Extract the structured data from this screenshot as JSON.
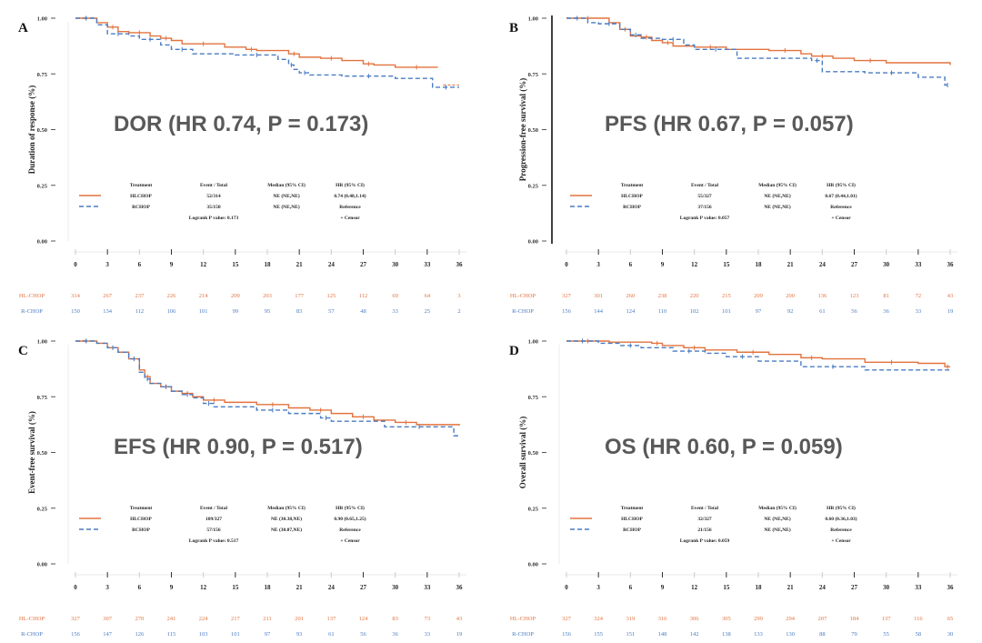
{
  "colors": {
    "hl": "#e2733f",
    "r": "#4a7cc2",
    "axis": "#222222",
    "title": "#595959",
    "text": "#222222"
  },
  "legend_headers": [
    "Treatment",
    "Event / Total",
    "Median (95% CI)",
    "HR (95% CI)"
  ],
  "censor_label": "+ Censor",
  "chart_data": [
    {
      "panel": "A",
      "type": "line",
      "title": "DOR (HR 0.74, P = 0.173)",
      "ylabel": "Duration of response (%)",
      "xlabel": "",
      "ylim": [
        0,
        1
      ],
      "xlim": [
        0,
        36
      ],
      "yticks": [
        "0.00",
        "0.25",
        "0.50",
        "0.75",
        "1.00"
      ],
      "xticks": [
        "0",
        "3",
        "6",
        "9",
        "12",
        "15",
        "18",
        "21",
        "24",
        "27",
        "30",
        "33",
        "36"
      ],
      "y_axis_line": false,
      "series": [
        {
          "name": "HL-CHOP",
          "style": "solid",
          "events_total": "52/314",
          "median": "NE (NE,NE)",
          "hr": "0.74 (0.48,1.14)",
          "x": [
            0,
            2,
            3,
            4,
            5,
            7,
            8,
            9,
            10,
            14,
            16,
            17,
            20,
            21,
            23,
            25,
            27,
            28,
            30,
            34
          ],
          "y": [
            1.0,
            0.98,
            0.96,
            0.94,
            0.935,
            0.92,
            0.91,
            0.9,
            0.885,
            0.87,
            0.86,
            0.855,
            0.84,
            0.825,
            0.82,
            0.81,
            0.795,
            0.79,
            0.78,
            0.78
          ],
          "tail": {
            "x": [
              34.5,
              36
            ],
            "y": [
              0.7,
              0.7
            ]
          }
        },
        {
          "name": "R-CHOP",
          "style": "dashed",
          "events_total": "35/150",
          "median": "NE (NE,NE)",
          "hr": "Reference",
          "x": [
            0,
            2,
            3,
            5,
            6,
            8,
            9,
            11,
            15,
            19,
            20,
            20.5,
            21,
            22,
            25,
            30,
            33.5,
            36
          ],
          "y": [
            1.0,
            0.97,
            0.93,
            0.92,
            0.905,
            0.88,
            0.86,
            0.84,
            0.835,
            0.815,
            0.79,
            0.77,
            0.755,
            0.745,
            0.74,
            0.73,
            0.69,
            0.69
          ]
        }
      ],
      "logrank": "Logrank P value: 0.173",
      "at_risk": {
        "HL-CHOP": [
          "314",
          "267",
          "237",
          "226",
          "214",
          "209",
          "203",
          "177",
          "125",
          "112",
          "69",
          "64",
          "3"
        ],
        "R-CHOP": [
          "150",
          "134",
          "112",
          "106",
          "101",
          "99",
          "95",
          "83",
          "57",
          "48",
          "33",
          "25",
          "2"
        ]
      }
    },
    {
      "panel": "B",
      "type": "line",
      "title": "PFS (HR 0.67, P = 0.057)",
      "ylabel": "Progression-free survival (%)",
      "xlabel": "",
      "ylim": [
        0,
        1
      ],
      "xlim": [
        0,
        36
      ],
      "yticks": [
        "0.00",
        "0.25",
        "0.50",
        "0.75",
        "1.00"
      ],
      "xticks": [
        "0",
        "3",
        "6",
        "9",
        "12",
        "15",
        "18",
        "21",
        "24",
        "27",
        "30",
        "33",
        "36"
      ],
      "y_axis_line": true,
      "series": [
        {
          "name": "HL-CHOP",
          "style": "solid",
          "events_total": "55/327",
          "median": "NE (NE,NE)",
          "hr": "0.67 (0.44,1.01)",
          "x": [
            0,
            4,
            5,
            6,
            7,
            8,
            9,
            10,
            12,
            15,
            19,
            22,
            23,
            25,
            27,
            30,
            36
          ],
          "y": [
            1.0,
            0.98,
            0.95,
            0.92,
            0.915,
            0.9,
            0.89,
            0.875,
            0.87,
            0.86,
            0.855,
            0.84,
            0.83,
            0.82,
            0.81,
            0.8,
            0.79
          ],
          "tail": null
        },
        {
          "name": "R-CHOP",
          "style": "dashed",
          "events_total": "37/156",
          "median": "NE (NE,NE)",
          "hr": "Reference",
          "x": [
            0,
            2,
            3,
            5,
            6,
            7,
            9,
            11,
            12,
            16,
            23,
            24,
            28,
            33,
            35.5,
            36
          ],
          "y": [
            1.0,
            0.98,
            0.975,
            0.95,
            0.925,
            0.91,
            0.905,
            0.88,
            0.86,
            0.82,
            0.81,
            0.76,
            0.755,
            0.735,
            0.7,
            0.7
          ]
        }
      ],
      "logrank": "Logrank P value: 0.057",
      "at_risk": {
        "HL-CHOP": [
          "327",
          "301",
          "260",
          "238",
          "220",
          "215",
          "209",
          "200",
          "136",
          "123",
          "81",
          "72",
          "43"
        ],
        "R-CHOP": [
          "156",
          "144",
          "124",
          "110",
          "102",
          "101",
          "97",
          "92",
          "61",
          "56",
          "36",
          "33",
          "19"
        ]
      }
    },
    {
      "panel": "C",
      "type": "line",
      "title": "EFS (HR 0.90, P = 0.517)",
      "ylabel": "Event-free survival (%)",
      "xlabel": "",
      "ylim": [
        0,
        1
      ],
      "xlim": [
        0,
        36
      ],
      "yticks": [
        "0.00",
        "0.25",
        "0.50",
        "0.75",
        "1.00"
      ],
      "xticks": [
        "0",
        "3",
        "6",
        "9",
        "12",
        "15",
        "18",
        "21",
        "24",
        "27",
        "30",
        "33",
        "36"
      ],
      "y_axis_line": false,
      "series": [
        {
          "name": "HL-CHOP",
          "style": "solid",
          "events_total": "109/327",
          "median": "NE (30.38,NE)",
          "hr": "0.90 (0.65,1.25)",
          "x": [
            0,
            2,
            3,
            4,
            5,
            6,
            6.5,
            7,
            8,
            9,
            10,
            11,
            12,
            14,
            17,
            20,
            22,
            24,
            26,
            28,
            30,
            32,
            36
          ],
          "y": [
            1.0,
            0.99,
            0.97,
            0.95,
            0.92,
            0.87,
            0.84,
            0.81,
            0.795,
            0.775,
            0.765,
            0.75,
            0.735,
            0.725,
            0.715,
            0.7,
            0.69,
            0.675,
            0.66,
            0.645,
            0.635,
            0.625,
            0.62
          ],
          "tail": null
        },
        {
          "name": "R-CHOP",
          "style": "dashed",
          "events_total": "57/156",
          "median": "NE (30.87,NE)",
          "hr": "Reference",
          "x": [
            0,
            2,
            3,
            4,
            5,
            6,
            6.5,
            7,
            8,
            9,
            10,
            11,
            12,
            13,
            17,
            20,
            23,
            24,
            29,
            35.5,
            36
          ],
          "y": [
            1.0,
            0.99,
            0.97,
            0.95,
            0.92,
            0.86,
            0.83,
            0.81,
            0.795,
            0.775,
            0.76,
            0.745,
            0.72,
            0.705,
            0.69,
            0.675,
            0.655,
            0.64,
            0.615,
            0.575,
            0.575
          ]
        }
      ],
      "logrank": "Logrank P value: 0.517",
      "at_risk": {
        "HL-CHOP": [
          "327",
          "307",
          "270",
          "241",
          "224",
          "217",
          "211",
          "201",
          "137",
          "124",
          "83",
          "73",
          "43"
        ],
        "R-CHOP": [
          "156",
          "147",
          "126",
          "115",
          "103",
          "101",
          "97",
          "93",
          "61",
          "56",
          "36",
          "33",
          "19"
        ]
      }
    },
    {
      "panel": "D",
      "type": "line",
      "title": "OS (HR 0.60, P = 0.059)",
      "ylabel": "Overall survival (%)",
      "xlabel": "",
      "ylim": [
        0,
        1
      ],
      "xlim": [
        0,
        36
      ],
      "yticks": [
        "0.00",
        "0.25",
        "0.50",
        "0.75",
        "1.00"
      ],
      "xticks": [
        "0",
        "3",
        "6",
        "9",
        "12",
        "15",
        "18",
        "21",
        "24",
        "27",
        "30",
        "33",
        "36"
      ],
      "y_axis_line": false,
      "series": [
        {
          "name": "HL-CHOP",
          "style": "solid",
          "events_total": "32/327",
          "median": "NE (NE,NE)",
          "hr": "0.60 (0.36,1.03)",
          "x": [
            0,
            4,
            8,
            9,
            11,
            13,
            16,
            19,
            22,
            24,
            28,
            33,
            35.5,
            36
          ],
          "y": [
            1.0,
            0.995,
            0.99,
            0.98,
            0.97,
            0.96,
            0.95,
            0.94,
            0.925,
            0.92,
            0.905,
            0.9,
            0.885,
            0.885
          ],
          "tail": null
        },
        {
          "name": "R-CHOP",
          "style": "dashed",
          "events_total": "21/156",
          "median": "NE (NE,NE)",
          "hr": "Reference",
          "x": [
            0,
            3,
            5,
            7,
            10,
            13,
            15,
            18,
            22,
            28,
            36
          ],
          "y": [
            1.0,
            0.99,
            0.98,
            0.97,
            0.955,
            0.945,
            0.93,
            0.91,
            0.885,
            0.87,
            0.87
          ]
        }
      ],
      "logrank": "Logrank P value: 0.059",
      "at_risk": {
        "HL-CHOP": [
          "327",
          "324",
          "319",
          "316",
          "306",
          "305",
          "299",
          "294",
          "207",
          "184",
          "137",
          "116",
          "65"
        ],
        "R-CHOP": [
          "156",
          "155",
          "151",
          "148",
          "142",
          "138",
          "133",
          "130",
          "88",
          "79",
          "55",
          "58",
          "30"
        ]
      }
    }
  ]
}
